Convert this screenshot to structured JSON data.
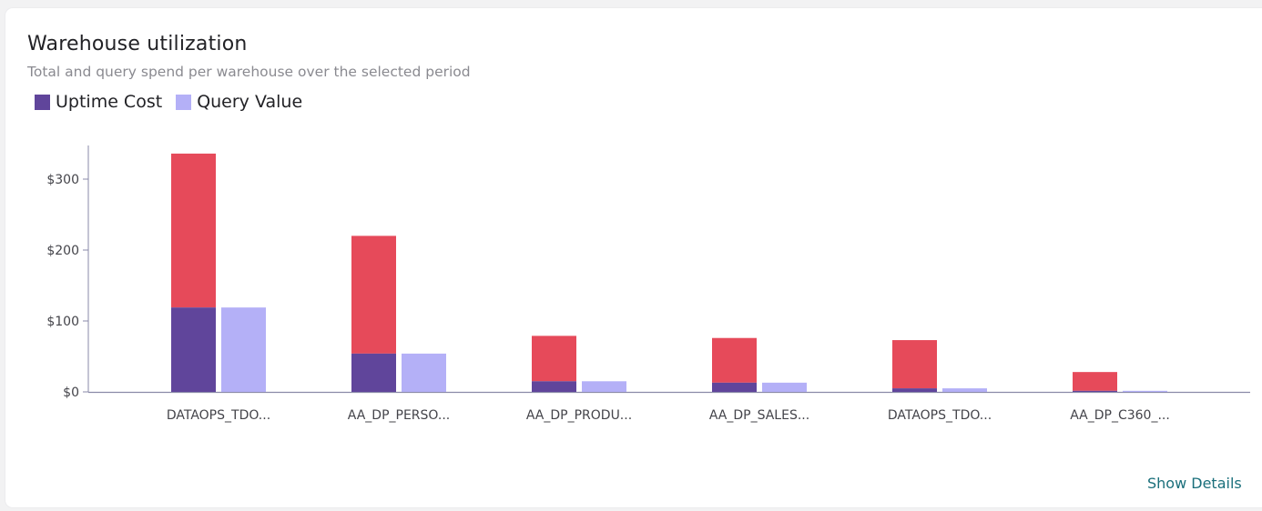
{
  "card": {
    "title": "Warehouse utilization",
    "subtitle": "Total and query spend per warehouse over the selected period",
    "show_details_label": "Show Details"
  },
  "legend": [
    {
      "label": "Uptime Cost",
      "color": "#60459b"
    },
    {
      "label": "Query Value",
      "color": "#b4b0f7"
    }
  ],
  "colors": {
    "uptime": "#60459b",
    "uptime_remainder": "#e64a5a",
    "query": "#b4b0f7",
    "axis": "#8a8aa8"
  },
  "chart_data": {
    "type": "bar",
    "title": "Warehouse utilization",
    "xlabel": "",
    "ylabel": "",
    "ylim": [
      0,
      350
    ],
    "y_ticks": [
      0,
      100,
      200,
      300
    ],
    "y_tick_labels": [
      "$0",
      "$100",
      "$200",
      "$300"
    ],
    "grid": false,
    "legend_position": "top-left",
    "categories": [
      "DATAOPS_TDO...",
      "AA_DP_PERSO...",
      "AA_DP_PRODU...",
      "AA_DP_SALES...",
      "DATAOPS_TDO...",
      "AA_DP_C360_..."
    ],
    "series": [
      {
        "name": "Uptime Cost",
        "stack": "uptime",
        "values": [
          336,
          220,
          79,
          76,
          73,
          28
        ]
      },
      {
        "name": "Query Value",
        "stack": "query",
        "values": [
          119,
          54,
          15,
          13,
          5,
          1.5
        ]
      }
    ]
  }
}
